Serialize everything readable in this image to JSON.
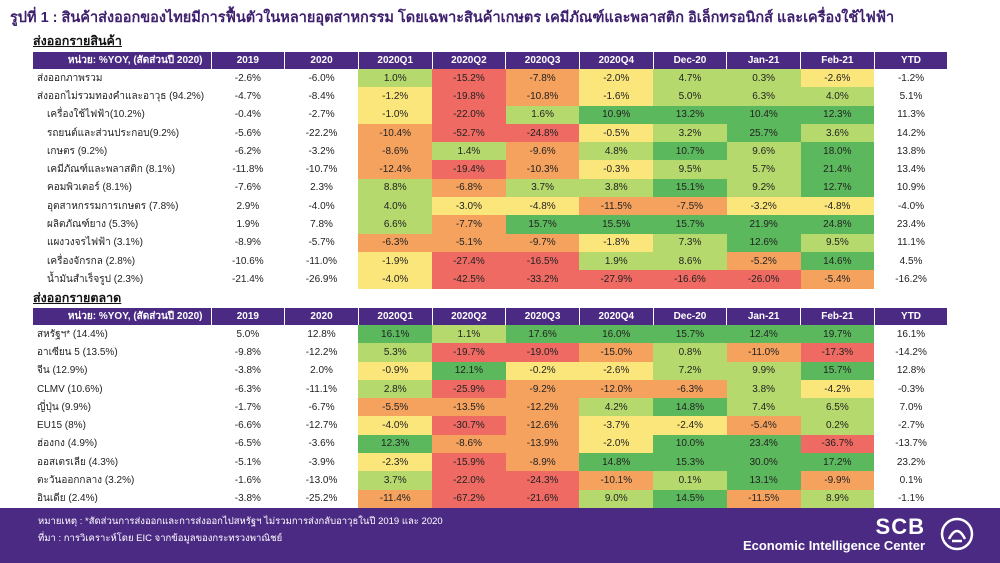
{
  "title": "รูปที่ 1 : สินค้าส่งออกของไทยมีการฟื้นตัวในหลายอุตสาหกรรม โดยเฉพาะสินค้าเกษตร เคมีภัณฑ์และพลาสติก อิเล็กทรอนิกส์ และเครื่องใช้ไฟฟ้า",
  "columns": [
    "2019",
    "2020",
    "2020Q1",
    "2020Q2",
    "2020Q3",
    "2020Q4",
    "Dec-20",
    "Jan-21",
    "Feb-21",
    "YTD"
  ],
  "products": {
    "section_title": "ส่งออกรายสินค้า",
    "unit_label": "หน่วย: %YOY, (สัดส่วนปี 2020)",
    "rows": [
      {
        "label": "ส่งออกภาพรวม",
        "indent": false,
        "values": [
          "-2.6%",
          "-6.0%",
          "1.0%",
          "-15.2%",
          "-7.8%",
          "-2.0%",
          "4.7%",
          "0.3%",
          "-2.6%",
          "-1.2%"
        ]
      },
      {
        "label": "ส่งออกไม่รวมทองคำและอาวุธ (94.2%)",
        "indent": false,
        "values": [
          "-4.7%",
          "-8.4%",
          "-1.2%",
          "-19.8%",
          "-10.8%",
          "-1.6%",
          "5.0%",
          "6.3%",
          "4.0%",
          "5.1%"
        ]
      },
      {
        "label": "เครื่องใช้ไฟฟ้า(10.2%)",
        "indent": true,
        "values": [
          "-0.4%",
          "-2.7%",
          "-1.0%",
          "-22.0%",
          "1.6%",
          "10.9%",
          "13.2%",
          "10.4%",
          "12.3%",
          "11.3%"
        ]
      },
      {
        "label": "รถยนต์และส่วนประกอบ(9.2%)",
        "indent": true,
        "values": [
          "-5.6%",
          "-22.2%",
          "-10.4%",
          "-52.7%",
          "-24.8%",
          "-0.5%",
          "3.2%",
          "25.7%",
          "3.6%",
          "14.2%"
        ]
      },
      {
        "label": "เกษตร (9.2%)",
        "indent": true,
        "values": [
          "-6.2%",
          "-3.2%",
          "-8.6%",
          "1.4%",
          "-9.6%",
          "4.8%",
          "10.7%",
          "9.6%",
          "18.0%",
          "13.8%"
        ]
      },
      {
        "label": "เคมีภัณฑ์และพลาสติก (8.1%)",
        "indent": true,
        "values": [
          "-11.8%",
          "-10.7%",
          "-12.4%",
          "-19.4%",
          "-10.3%",
          "-0.3%",
          "9.5%",
          "5.7%",
          "21.4%",
          "13.4%"
        ]
      },
      {
        "label": "คอมพิวเตอร์ (8.1%)",
        "indent": true,
        "values": [
          "-7.6%",
          "2.3%",
          "8.8%",
          "-6.8%",
          "3.7%",
          "3.8%",
          "15.1%",
          "9.2%",
          "12.7%",
          "10.9%"
        ]
      },
      {
        "label": "อุตสาหกรรมการเกษตร (7.8%)",
        "indent": true,
        "values": [
          "2.9%",
          "-4.0%",
          "4.0%",
          "-3.0%",
          "-4.8%",
          "-11.5%",
          "-7.5%",
          "-3.2%",
          "-4.8%",
          "-4.0%"
        ]
      },
      {
        "label": "ผลิตภัณฑ์ยาง (5.3%)",
        "indent": true,
        "values": [
          "1.9%",
          "7.8%",
          "6.6%",
          "-7.7%",
          "15.7%",
          "15.5%",
          "15.7%",
          "21.9%",
          "24.8%",
          "23.4%"
        ]
      },
      {
        "label": "แผงวงจรไฟฟ้า (3.1%)",
        "indent": true,
        "values": [
          "-8.9%",
          "-5.7%",
          "-6.3%",
          "-5.1%",
          "-9.7%",
          "-1.8%",
          "7.3%",
          "12.6%",
          "9.5%",
          "11.1%"
        ]
      },
      {
        "label": "เครื่องจักรกล (2.8%)",
        "indent": true,
        "values": [
          "-10.6%",
          "-11.0%",
          "-1.9%",
          "-27.4%",
          "-16.5%",
          "1.9%",
          "8.6%",
          "-5.2%",
          "14.6%",
          "4.5%"
        ]
      },
      {
        "label": "น้ำมันสำเร็จรูป (2.3%)",
        "indent": true,
        "values": [
          "-21.4%",
          "-26.9%",
          "-4.0%",
          "-42.5%",
          "-33.2%",
          "-27.9%",
          "-16.6%",
          "-26.0%",
          "-5.4%",
          "-16.2%"
        ]
      }
    ]
  },
  "markets": {
    "section_title": "ส่งออกรายตลาด",
    "unit_label": "หน่วย: %YOY, (สัดส่วนปี 2020)",
    "rows": [
      {
        "label": "สหรัฐฯ* (14.4%)",
        "indent": false,
        "values": [
          "5.0%",
          "12.8%",
          "16.1%",
          "1.1%",
          "17.6%",
          "16.0%",
          "15.7%",
          "12.4%",
          "19.7%",
          "16.1%"
        ]
      },
      {
        "label": "อาเซียน 5 (13.5%)",
        "indent": false,
        "values": [
          "-9.8%",
          "-12.2%",
          "5.3%",
          "-19.7%",
          "-19.0%",
          "-15.0%",
          "0.8%",
          "-11.0%",
          "-17.3%",
          "-14.2%"
        ]
      },
      {
        "label": "จีน (12.9%)",
        "indent": false,
        "values": [
          "-3.8%",
          "2.0%",
          "-0.9%",
          "12.1%",
          "-0.2%",
          "-2.6%",
          "7.2%",
          "9.9%",
          "15.7%",
          "12.8%"
        ]
      },
      {
        "label": "CLMV (10.6%)",
        "indent": false,
        "values": [
          "-6.3%",
          "-11.1%",
          "2.8%",
          "-25.9%",
          "-9.2%",
          "-12.0%",
          "-6.3%",
          "3.8%",
          "-4.2%",
          "-0.3%"
        ]
      },
      {
        "label": "ญี่ปุ่น (9.9%)",
        "indent": false,
        "values": [
          "-1.7%",
          "-6.7%",
          "-5.5%",
          "-13.5%",
          "-12.2%",
          "4.2%",
          "14.8%",
          "7.4%",
          "6.5%",
          "7.0%"
        ]
      },
      {
        "label": "EU15 (8%)",
        "indent": false,
        "values": [
          "-6.6%",
          "-12.7%",
          "-4.0%",
          "-30.7%",
          "-12.6%",
          "-3.7%",
          "-2.4%",
          "-5.4%",
          "0.2%",
          "-2.7%"
        ]
      },
      {
        "label": "ฮ่องกง (4.9%)",
        "indent": false,
        "values": [
          "-6.5%",
          "-3.6%",
          "12.3%",
          "-8.6%",
          "-13.9%",
          "-2.0%",
          "10.0%",
          "23.4%",
          "-36.7%",
          "-13.7%"
        ]
      },
      {
        "label": "ออสเตรเลีย (4.3%)",
        "indent": false,
        "values": [
          "-5.1%",
          "-3.9%",
          "-2.3%",
          "-15.9%",
          "-8.9%",
          "14.8%",
          "15.3%",
          "30.0%",
          "17.2%",
          "23.2%"
        ]
      },
      {
        "label": "ตะวันออกกลาง (3.2%)",
        "indent": false,
        "values": [
          "-1.6%",
          "-13.0%",
          "3.7%",
          "-22.0%",
          "-24.3%",
          "-10.1%",
          "0.1%",
          "13.1%",
          "-9.9%",
          "0.1%"
        ]
      },
      {
        "label": "อินเดีย (2.4%)",
        "indent": false,
        "values": [
          "-3.8%",
          "-25.2%",
          "-11.4%",
          "-67.2%",
          "-21.6%",
          "9.0%",
          "14.5%",
          "-11.5%",
          "8.9%",
          "-1.1%"
        ]
      }
    ]
  },
  "colors": {
    "header_bg": "#4b2a84",
    "strong_green": "#5cb85c",
    "light_green": "#b5d96c",
    "yellow": "#fbe67b",
    "orange": "#f5a25f",
    "red": "#ee6a63"
  },
  "footer": {
    "note": "หมายเหตุ : *สัดส่วนการส่งออกและการส่งออกไปสหรัฐฯ ไม่รวมการส่งกลับอาวุธในปี 2019 และ 2020",
    "source": "ที่มา : การวิเคราะห์โดย EIC จากข้อมูลของกระทรวงพาณิชย์",
    "logo_scb": "SCB",
    "logo_eic": "Economic Intelligence Center",
    "logo_icon": "scb-emblem-icon"
  }
}
